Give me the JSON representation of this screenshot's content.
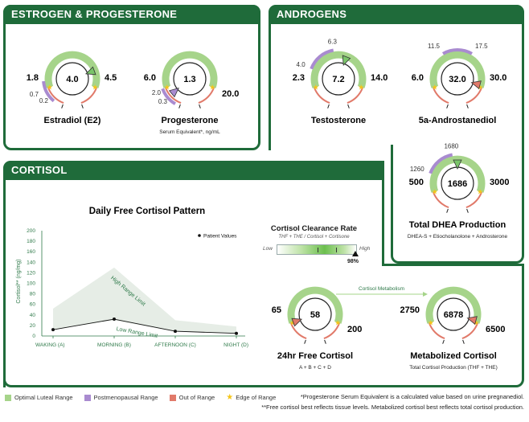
{
  "sections": {
    "estrogen": "ESTROGEN & PROGESTERONE",
    "androgens": "ANDROGENS",
    "cortisol": "CORTISOL"
  },
  "colors": {
    "panel": "#1f6b3a",
    "optimal": "#a6d48a",
    "postmeno": "#a98bd0",
    "out": "#e17a6a",
    "edge": "#f5c518",
    "marker": "#7ac46a"
  },
  "gauges": [
    {
      "id": "estradiol",
      "title": "Estradiol (E2)",
      "subtitle": "",
      "value": "4.0",
      "low": "1.8",
      "high": "4.5",
      "pm_low": "0.2",
      "pm_high": "0.7",
      "marker_color": "#7ac46a"
    },
    {
      "id": "progesterone",
      "title": "Progesterone",
      "subtitle": "Serum Equivalent*, ng/mL",
      "value": "1.3",
      "low": "6.0",
      "high": "20.0",
      "pm_low": "0.3",
      "pm_high": "2.0",
      "marker_color": "#a98bd0"
    },
    {
      "id": "testosterone",
      "title": "Testosterone",
      "subtitle": "",
      "value": "7.2",
      "low": "2.3",
      "high": "14.0",
      "pm_low": "4.0",
      "pm_high": "6.3",
      "marker_color": "#7ac46a"
    },
    {
      "id": "androstanediol",
      "title": "5a-Androstanediol",
      "subtitle": "",
      "value": "32.0",
      "low": "6.0",
      "high": "30.0",
      "pm_low": "11.5",
      "pm_high": "17.5",
      "marker_color": "#e17a6a"
    },
    {
      "id": "dhea",
      "title": "Total DHEA Production",
      "subtitle": "DHEA-S + Etiocholanolone + Androsterone",
      "value": "1686",
      "low": "500",
      "high": "3000",
      "pm_low": "1260",
      "pm_high": "1680",
      "marker_color": "#7ac46a"
    },
    {
      "id": "free-cortisol",
      "title": "24hr Free Cortisol",
      "subtitle": "A + B + C + D",
      "value": "58",
      "low": "65",
      "high": "200",
      "pm_low": "",
      "pm_high": "",
      "marker_color": "#e17a6a"
    },
    {
      "id": "metabolized-cortisol",
      "title": "Metabolized Cortisol",
      "subtitle": "Total Cortisol Production (THF + THE)",
      "value": "6878",
      "low": "2750",
      "high": "6500",
      "pm_low": "",
      "pm_high": "",
      "marker_color": "#e17a6a"
    }
  ],
  "clearance": {
    "title": "Cortisol Clearance Rate",
    "formula": "THF + THE / Cortisol + Cortisone",
    "low_label": "Low",
    "high_label": "High",
    "value": "98%",
    "fraction": 0.98
  },
  "metabolism_label": "Cortisol Metabolism",
  "chart_data": {
    "type": "line",
    "title": "Daily Free Cortisol Pattern",
    "ylabel": "Cortisol** (ng/mg)",
    "xlabel": "",
    "categories": [
      "WAKING (A)",
      "MORNING (B)",
      "AFTERNOON (C)",
      "NIGHT (D)"
    ],
    "yticks": [
      0,
      20,
      40,
      60,
      80,
      100,
      120,
      140,
      160,
      180,
      200
    ],
    "ylim": [
      0,
      200
    ],
    "series": [
      {
        "name": "Patient Values",
        "values": [
          12,
          32,
          9,
          5
        ]
      },
      {
        "name": "High Range Limit",
        "values": [
          52,
          130,
          30,
          18
        ]
      },
      {
        "name": "Low Range Limit",
        "values": [
          12,
          30,
          8,
          5
        ]
      }
    ],
    "legend": "Patient Values",
    "high_label": "High Range Limit",
    "low_label": "Low Range Limit"
  },
  "legend": [
    {
      "label": "Optimal Luteal Range",
      "color": "#a6d48a"
    },
    {
      "label": "Postmenopausal Range",
      "color": "#a98bd0"
    },
    {
      "label": "Out of Range",
      "color": "#e17a6a"
    },
    {
      "label": "Edge of Range",
      "color": "#f5c518"
    }
  ],
  "footnotes": {
    "one": "*Progesterone Serum Equivalent is a calculated value based on urine pregnanediol.",
    "two": "**Free cortisol best reflects tissue levels. Metabolized cortisol best reflects total cortisol production."
  }
}
